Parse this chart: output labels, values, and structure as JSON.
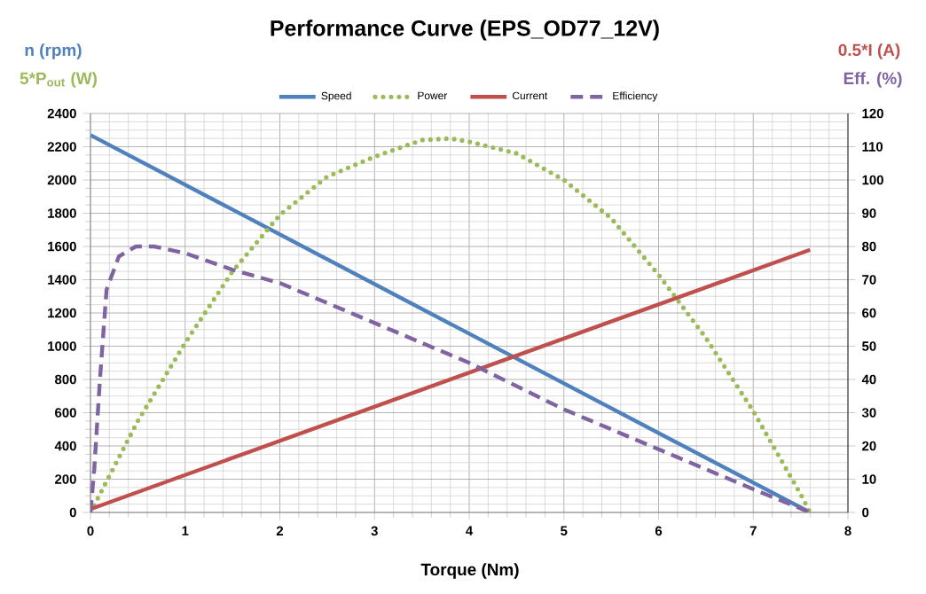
{
  "chart_data": {
    "type": "line",
    "title": "Performance Curve (EPS_OD77_12V)",
    "xlabel": "Torque (Nm)",
    "ylabel": "n (rpm)",
    "y2label": "Eff. (%)",
    "annotations": [
      "5*P$_{out}$ (W)",
      "0.5*I (A)"
    ],
    "xlim": [
      0,
      8
    ],
    "xticks": [
      0,
      1,
      2,
      3,
      4,
      5,
      6,
      7,
      8
    ],
    "ylim": [
      0,
      2400
    ],
    "yticks": [
      0,
      200,
      400,
      600,
      800,
      1000,
      1200,
      1400,
      1600,
      1800,
      2000,
      2200,
      2400
    ],
    "y2lim": [
      0,
      120
    ],
    "y2ticks": [
      0,
      10,
      20,
      30,
      40,
      50,
      60,
      70,
      80,
      90,
      100,
      110,
      120
    ],
    "grid": true,
    "legend": "top",
    "marker": "none",
    "series": [
      {
        "name": "Speed",
        "color": "#4f81bd",
        "line_style": "solid",
        "x": [
          0,
          7.6
        ],
        "values": [
          2270,
          0
        ]
      },
      {
        "name": "Power",
        "color": "#9bbb59",
        "line_style": "dotted",
        "x": [
          0,
          0.5,
          1,
          1.5,
          2,
          2.5,
          3,
          3.5,
          3.8,
          4,
          4.5,
          5,
          5.5,
          6,
          6.5,
          7,
          7.5,
          7.6
        ],
        "values": [
          0,
          550,
          1020,
          1450,
          1790,
          2020,
          2140,
          2240,
          2250,
          2230,
          2160,
          2000,
          1770,
          1430,
          1050,
          610,
          110,
          0
        ]
      },
      {
        "name": "Current",
        "color": "#c0504d",
        "line_style": "solid",
        "axis": "y2",
        "x": [
          0,
          7.6
        ],
        "values": [
          1,
          79
        ]
      },
      {
        "name": "Efficiency",
        "color": "#8064a2",
        "line_style": "dashed",
        "axis": "y2",
        "x": [
          0,
          0.04,
          0.1,
          0.17,
          0.3,
          0.48,
          0.67,
          1,
          1.5,
          2,
          3,
          4,
          5,
          6,
          7,
          7.6
        ],
        "values": [
          0,
          13,
          40,
          67,
          77,
          80,
          80,
          78,
          73,
          69,
          57,
          45,
          31,
          19,
          7,
          0
        ]
      }
    ]
  }
}
